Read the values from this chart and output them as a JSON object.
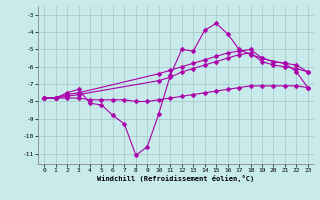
{
  "xlabel": "Windchill (Refroidissement éolien,°C)",
  "background_color": "#c8eaea",
  "line_color": "#aa00aa",
  "grid_color": "#aacccc",
  "xlim": [
    -0.5,
    23.5
  ],
  "ylim": [
    -11.6,
    -2.5
  ],
  "yticks": [
    -3,
    -4,
    -5,
    -6,
    -7,
    -8,
    -9,
    -10,
    -11
  ],
  "xticks": [
    0,
    1,
    2,
    3,
    4,
    5,
    6,
    7,
    8,
    9,
    10,
    11,
    12,
    13,
    14,
    15,
    16,
    17,
    18,
    19,
    20,
    21,
    22,
    23
  ],
  "series": [
    {
      "x": [
        0,
        1,
        2,
        3,
        4,
        5,
        6,
        7,
        8,
        9,
        10,
        11,
        12,
        13,
        14,
        15,
        16,
        17,
        18,
        19,
        20,
        21,
        22,
        23
      ],
      "y": [
        -7.8,
        -7.8,
        -7.5,
        -7.3,
        -8.1,
        -8.2,
        -8.8,
        -9.3,
        -11.1,
        -10.6,
        -8.7,
        -6.5,
        -5.0,
        -5.1,
        -3.9,
        -3.5,
        -4.1,
        -5.0,
        -5.3,
        -5.5,
        -5.7,
        -5.8,
        -6.3,
        -7.2
      ]
    },
    {
      "x": [
        0,
        1,
        2,
        3,
        10,
        11,
        12,
        13,
        14,
        15,
        16,
        17,
        18,
        19,
        20,
        21,
        22,
        23
      ],
      "y": [
        -7.8,
        -7.8,
        -7.6,
        -7.5,
        -6.4,
        -6.2,
        -6.0,
        -5.8,
        -5.6,
        -5.4,
        -5.2,
        -5.1,
        -5.0,
        -5.5,
        -5.7,
        -5.8,
        -5.9,
        -6.3
      ]
    },
    {
      "x": [
        0,
        1,
        2,
        3,
        10,
        11,
        12,
        13,
        14,
        15,
        16,
        17,
        18,
        19,
        20,
        21,
        22,
        23
      ],
      "y": [
        -7.8,
        -7.8,
        -7.7,
        -7.6,
        -6.8,
        -6.6,
        -6.3,
        -6.1,
        -5.9,
        -5.7,
        -5.5,
        -5.3,
        -5.2,
        -5.7,
        -5.9,
        -6.0,
        -6.1,
        -6.3
      ]
    },
    {
      "x": [
        0,
        1,
        2,
        3,
        4,
        5,
        6,
        7,
        8,
        9,
        10,
        11,
        12,
        13,
        14,
        15,
        16,
        17,
        18,
        19,
        20,
        21,
        22,
        23
      ],
      "y": [
        -7.8,
        -7.8,
        -7.8,
        -7.8,
        -7.9,
        -7.9,
        -7.9,
        -7.9,
        -8.0,
        -8.0,
        -7.9,
        -7.8,
        -7.7,
        -7.6,
        -7.5,
        -7.4,
        -7.3,
        -7.2,
        -7.1,
        -7.1,
        -7.1,
        -7.1,
        -7.1,
        -7.2
      ]
    }
  ]
}
